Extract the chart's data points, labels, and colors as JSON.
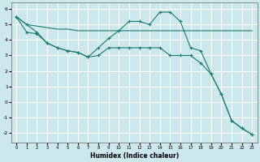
{
  "xlabel": "Humidex (Indice chaleur)",
  "bg_color": "#cce8ec",
  "grid_color": "#ffffff",
  "line_color": "#1a7a6e",
  "xlim": [
    -0.5,
    23.5
  ],
  "ylim": [
    -2.6,
    6.4
  ],
  "xticks": [
    0,
    1,
    2,
    3,
    4,
    5,
    6,
    7,
    8,
    9,
    10,
    11,
    12,
    13,
    14,
    15,
    16,
    17,
    18,
    19,
    20,
    21,
    22,
    23
  ],
  "yticks": [
    -2,
    -1,
    0,
    1,
    2,
    3,
    4,
    5,
    6
  ],
  "line1_x": [
    0,
    1,
    2,
    3,
    4,
    5,
    6,
    7,
    8,
    9,
    10,
    11,
    12,
    13,
    14,
    15,
    16,
    17,
    18,
    19,
    20,
    21,
    22,
    23
  ],
  "line1_y": [
    5.5,
    5.0,
    4.9,
    4.8,
    4.7,
    4.7,
    4.6,
    4.6,
    4.6,
    4.6,
    4.6,
    4.6,
    4.6,
    4.6,
    4.6,
    4.6,
    4.6,
    4.6,
    4.6,
    4.6,
    4.6,
    4.6,
    4.6,
    4.6
  ],
  "line2_x": [
    0,
    1,
    2,
    3,
    4,
    5,
    6,
    7,
    8,
    9,
    10,
    11,
    12,
    13,
    14,
    15,
    16,
    17,
    18,
    19,
    20,
    21,
    22,
    23
  ],
  "line2_y": [
    5.5,
    5.0,
    4.5,
    3.8,
    3.5,
    3.3,
    3.2,
    2.9,
    3.5,
    4.1,
    4.6,
    5.2,
    5.2,
    5.0,
    5.8,
    5.8,
    5.2,
    3.5,
    3.3,
    1.8,
    0.5,
    -1.2,
    -1.7,
    -2.1
  ],
  "line3_x": [
    0,
    1,
    2,
    3,
    4,
    5,
    6,
    7,
    8,
    9,
    10,
    11,
    12,
    13,
    14,
    15,
    16,
    17,
    18,
    19,
    20,
    21,
    22,
    23
  ],
  "line3_y": [
    5.5,
    4.5,
    4.4,
    3.8,
    3.5,
    3.3,
    3.2,
    2.9,
    3.0,
    3.5,
    3.5,
    3.5,
    3.5,
    3.5,
    3.5,
    3.0,
    3.0,
    3.0,
    2.5,
    1.8,
    0.5,
    -1.2,
    -1.7,
    -2.1
  ]
}
